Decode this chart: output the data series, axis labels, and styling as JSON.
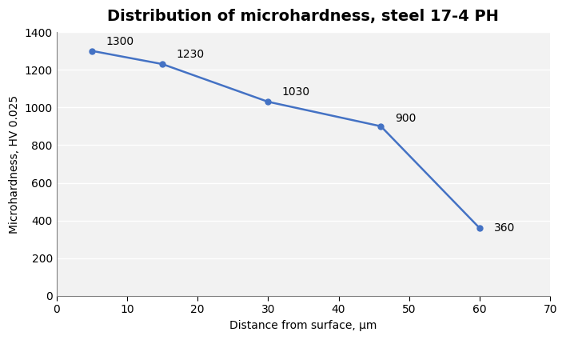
{
  "title": "Distribution of microhardness, steel 17-4 PH",
  "xlabel": "Distance from surface, μm",
  "ylabel": "Microhardness, HV 0.025",
  "x": [
    5,
    15,
    30,
    46,
    60
  ],
  "y": [
    1300,
    1230,
    1030,
    900,
    360
  ],
  "labels": [
    "1300",
    "1230",
    "1030",
    "900",
    "360"
  ],
  "label_offsets_x": [
    2,
    2,
    2,
    2,
    2
  ],
  "label_offsets_y": [
    20,
    20,
    20,
    10,
    -30
  ],
  "xlim": [
    0,
    70
  ],
  "ylim": [
    0,
    1400
  ],
  "xticks": [
    0,
    10,
    20,
    30,
    40,
    50,
    60,
    70
  ],
  "yticks": [
    0,
    200,
    400,
    600,
    800,
    1000,
    1200,
    1400
  ],
  "line_color": "#4472C4",
  "marker": "o",
  "marker_size": 5,
  "line_width": 1.8,
  "bg_color": "#FFFFFF",
  "plot_bg_color": "#F2F2F2",
  "grid_color": "#FFFFFF",
  "title_fontsize": 14,
  "label_fontsize": 10,
  "tick_fontsize": 10,
  "annotation_fontsize": 10
}
